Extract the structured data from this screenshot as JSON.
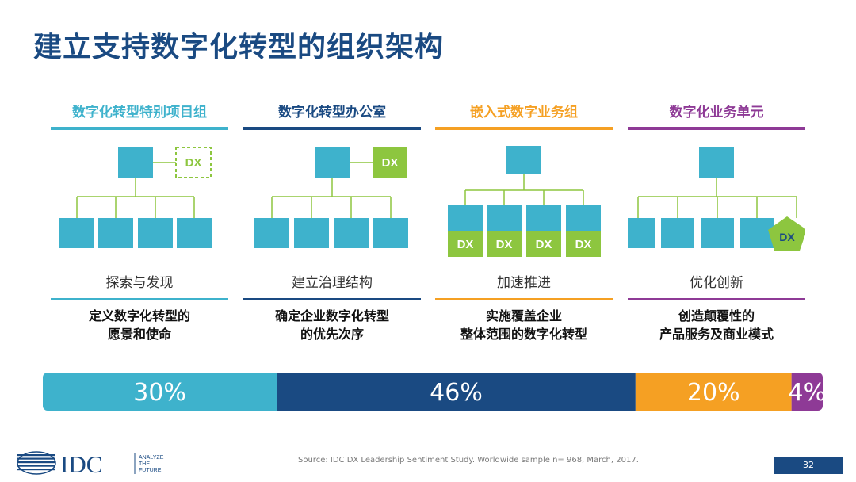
{
  "slide": {
    "title": "建立支持数字化转型的组织架构",
    "page_number": "32",
    "source": "Source: IDC DX Leadership Sentiment Study. Worldwide sample n= 968, March, 2017."
  },
  "logo": {
    "text": "IDC",
    "tagline_1": "ANALYZE",
    "tagline_2": "THE",
    "tagline_3": "FUTURE"
  },
  "columns": [
    {
      "heading": "数字化转型特别项目组",
      "color": "#3eb2cc",
      "caption": "探索与发现",
      "desc_line1": "定义数字化转型的",
      "desc_line2": "愿景和使命",
      "dx_label": "DX",
      "diagram": "top box with dashed DX box beside it, four child boxes"
    },
    {
      "heading": "数字化转型办公室",
      "color": "#1a4a82",
      "caption": "建立治理结构",
      "desc_line1": "确定企业数字化转型",
      "desc_line2": "的优先次序",
      "dx_label": "DX",
      "diagram": "top box with solid green DX box beside it, four child boxes"
    },
    {
      "heading": "嵌入式数字业务组",
      "color": "#f5a023",
      "caption": "加速推进",
      "desc_line1": "实施覆盖企业",
      "desc_line2": "整体范围的数字化转型",
      "dx_label": "DX",
      "diagram": "top box, four child boxes each with a DX box attached"
    },
    {
      "heading": "数字化业务单元",
      "color": "#8e3a96",
      "caption": "优化创新",
      "desc_line1": "创造颠覆性的",
      "desc_line2": "产品服务及商业模式",
      "dx_label": "DX",
      "diagram": "top box, four child boxes plus a green DX pentagon"
    }
  ],
  "colors": {
    "box": "#3eb2cc",
    "dx_green": "#8dc63f",
    "connector": "#8dc63f",
    "title": "#1a4a82",
    "page_box": "#1a4a82"
  },
  "chart_data": {
    "type": "bar",
    "orientation": "horizontal-stacked",
    "title": "",
    "categories": [
      "数字化转型特别项目组",
      "数字化转型办公室",
      "嵌入式数字业务组",
      "数字化业务单元"
    ],
    "values": [
      30,
      46,
      20,
      4
    ],
    "labels": [
      "30%",
      "46%",
      "20%",
      "4%"
    ],
    "colors": [
      "#3eb2cc",
      "#1a4a82",
      "#f5a023",
      "#8e3a96"
    ],
    "xlim": [
      0,
      100
    ],
    "unit": "%"
  }
}
